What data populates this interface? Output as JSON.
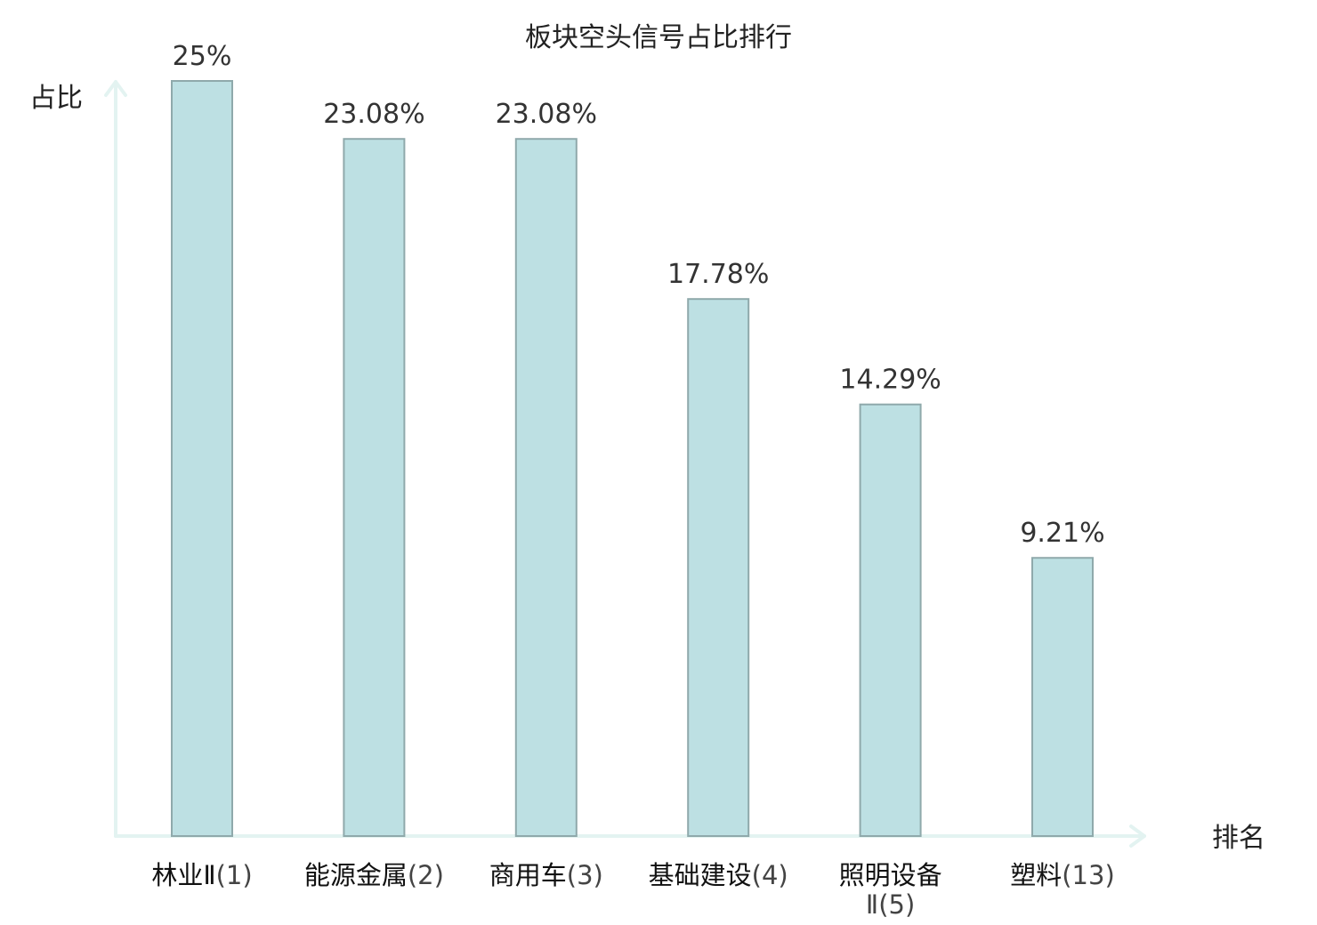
{
  "chart_data": {
    "type": "bar",
    "title": "板块空头信号占比排行",
    "ylabel": "占比",
    "xlabel": "排名",
    "ylim": [
      0,
      25
    ],
    "grid": false,
    "categories": [
      {
        "name": "林业Ⅱ",
        "rank": "(1)",
        "highlight": false
      },
      {
        "name": "能源金属",
        "rank": "(2)",
        "highlight": false
      },
      {
        "name": "商用车",
        "rank": "(3)",
        "highlight": false
      },
      {
        "name": "基础建设",
        "rank": "(4)",
        "highlight": false
      },
      {
        "name": "照明设备",
        "name2": "Ⅱ",
        "rank": "(5)",
        "highlight": false
      },
      {
        "name": "塑料",
        "rank": "(13)",
        "highlight": true
      }
    ],
    "values": [
      25,
      23.08,
      23.08,
      17.78,
      14.29,
      9.21
    ],
    "value_labels": [
      "25%",
      "23.08%",
      "23.08%",
      "17.78%",
      "14.29%",
      "9.21%"
    ],
    "colors": {
      "bar_fill": "#bde0e3",
      "bar_stroke": "#8fa9ab",
      "axis": "#e3f3f1",
      "highlight": "#e0201e"
    }
  }
}
